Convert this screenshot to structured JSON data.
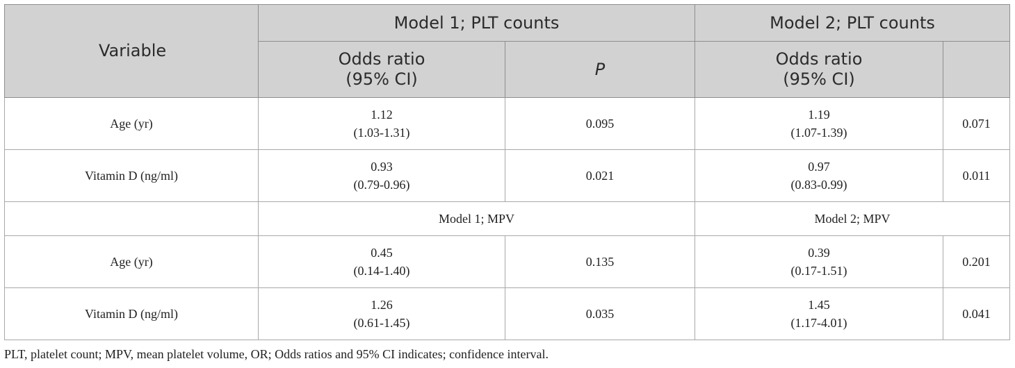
{
  "table": {
    "header": {
      "variable": "Variable",
      "model1_title": "Model 1; PLT counts",
      "model2_title": "Model 2; PLT counts",
      "odds_ratio_line1": "Odds ratio",
      "odds_ratio_line2": "(95% CI)",
      "p": "P"
    },
    "rows": [
      {
        "variable": "Age (yr)",
        "m1_or": "1.12",
        "m1_ci": "(1.03-1.31)",
        "m1_p": "0.095",
        "m2_or": "1.19",
        "m2_ci": "(1.07-1.39)",
        "m2_p": "0.071"
      },
      {
        "variable": "Vitamin D (ng/ml)",
        "m1_or": "0.93",
        "m1_ci": "(0.79-0.96)",
        "m1_p": "0.021",
        "m2_or": "0.97",
        "m2_ci": "(0.83-0.99)",
        "m2_p": "0.011"
      }
    ],
    "subheader": {
      "model1": "Model 1; MPV",
      "model2": "Model 2; MPV"
    },
    "rows_mpv": [
      {
        "variable": "Age (yr)",
        "m1_or": "0.45",
        "m1_ci": "(0.14-1.40)",
        "m1_p": "0.135",
        "m2_or": "0.39",
        "m2_ci": "(0.17-1.51)",
        "m2_p": "0.201"
      },
      {
        "variable": "Vitamin D (ng/ml)",
        "m1_or": "1.26",
        "m1_ci": "(0.61-1.45)",
        "m1_p": "0.035",
        "m2_or": "1.45",
        "m2_ci": "(1.17-4.01)",
        "m2_p": "0.041"
      }
    ]
  },
  "footnote": "PLT, platelet count; MPV, mean platelet volume, OR; Odds ratios and 95% CI indicates; confidence interval."
}
